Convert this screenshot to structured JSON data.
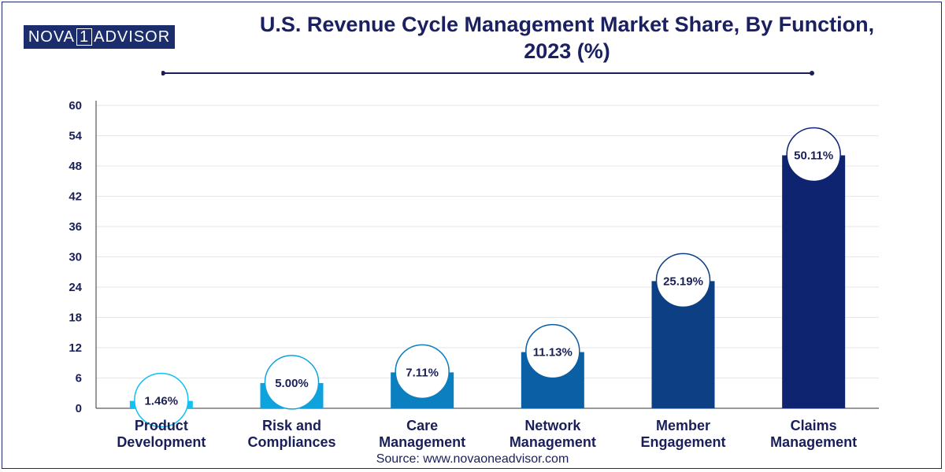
{
  "brand": {
    "part1": "NOVA",
    "part2": "1",
    "part3": "ADVISOR"
  },
  "source": "Source: www.novaoneadvisor.com",
  "colors": {
    "title": "#1a2060",
    "bars": [
      "#12c1f2",
      "#0ea3dd",
      "#0b7fc0",
      "#0a5fa5",
      "#0c3f84",
      "#0e2470"
    ]
  },
  "chart_data": {
    "type": "bar",
    "title": "U.S. Revenue Cycle Management Market Share, By Function, 2023 (%)",
    "title_lines": [
      "U.S. Revenue Cycle Management Market Share, By Function,",
      "2023 (%)"
    ],
    "categories": [
      [
        "Product",
        "Development"
      ],
      [
        "Risk and",
        "Compliances"
      ],
      [
        "Care",
        "Management"
      ],
      [
        "Network",
        "Management"
      ],
      [
        "Member",
        "Engagement"
      ],
      [
        "Claims",
        "Management"
      ]
    ],
    "values": [
      1.46,
      5.0,
      7.11,
      11.13,
      25.19,
      50.11
    ],
    "value_labels": [
      "1.46%",
      "5.00%",
      "7.11%",
      "11.13%",
      "25.19%",
      "50.11%"
    ],
    "ylim": [
      0,
      60
    ],
    "yticks": [
      0,
      6,
      12,
      18,
      24,
      30,
      36,
      42,
      48,
      54,
      60
    ],
    "xlabel": "",
    "ylabel": "",
    "grid": true
  }
}
